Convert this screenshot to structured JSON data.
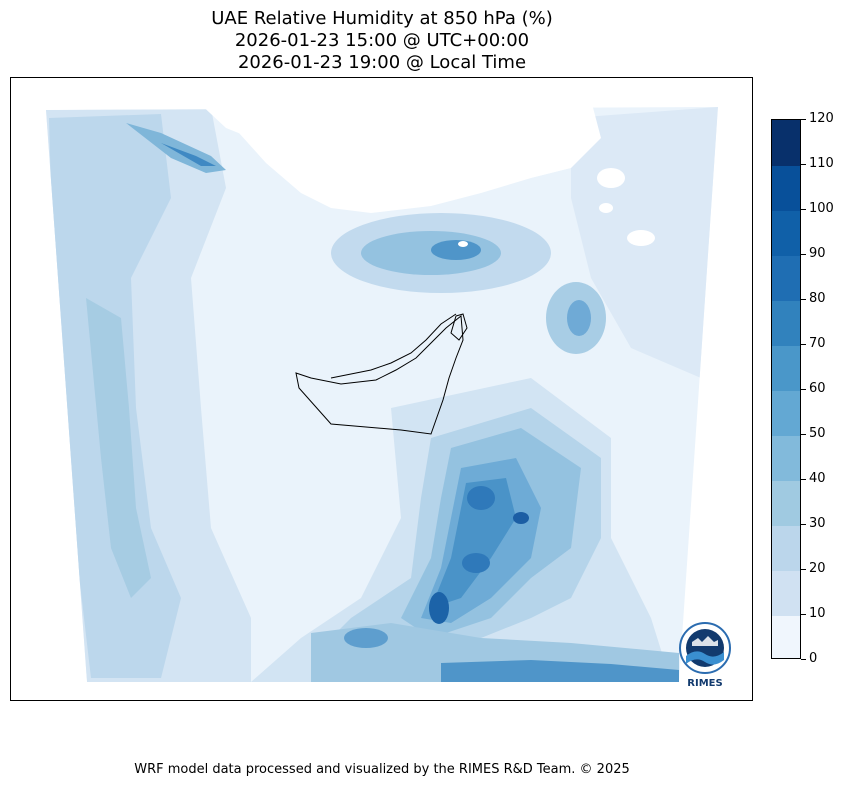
{
  "title": {
    "line1": "UAE Relative Humidity at 850 hPa (%)",
    "line2": "2026-01-23 15:00 @ UTC+00:00",
    "line3": "2026-01-23 19:00 @ Local Time"
  },
  "colorbar": {
    "ticks": [
      "0",
      "10",
      "20",
      "30",
      "40",
      "50",
      "60",
      "70",
      "80",
      "90",
      "100",
      "110",
      "120"
    ],
    "colors": [
      "#f0f6fd",
      "#dfebf7",
      "#d0e1f2",
      "#bbd6eb",
      "#a0cae1",
      "#82badb",
      "#63a8d3",
      "#4a97c9",
      "#3182bd",
      "#1f6eb3",
      "#1060a8",
      "#08509a",
      "#08306b"
    ]
  },
  "logo": {
    "text": "RIMES",
    "ring_text": "Regional Integrated Multi-Hazard Early Warning System"
  },
  "footer": "WRF model data processed and visualized by the RIMES R&D Team. © 2025",
  "chart_data": {
    "type": "heatmap",
    "title": "UAE Relative Humidity at 850 hPa (%)",
    "variable": "Relative Humidity",
    "level": "850 hPa",
    "units": "%",
    "valid_time_utc": "2026-01-23 15:00",
    "valid_time_local": "2026-01-23 19:00",
    "color_levels": [
      0,
      10,
      20,
      30,
      40,
      50,
      60,
      70,
      80,
      90,
      100,
      110,
      120
    ],
    "value_range": [
      0,
      120
    ]
  }
}
